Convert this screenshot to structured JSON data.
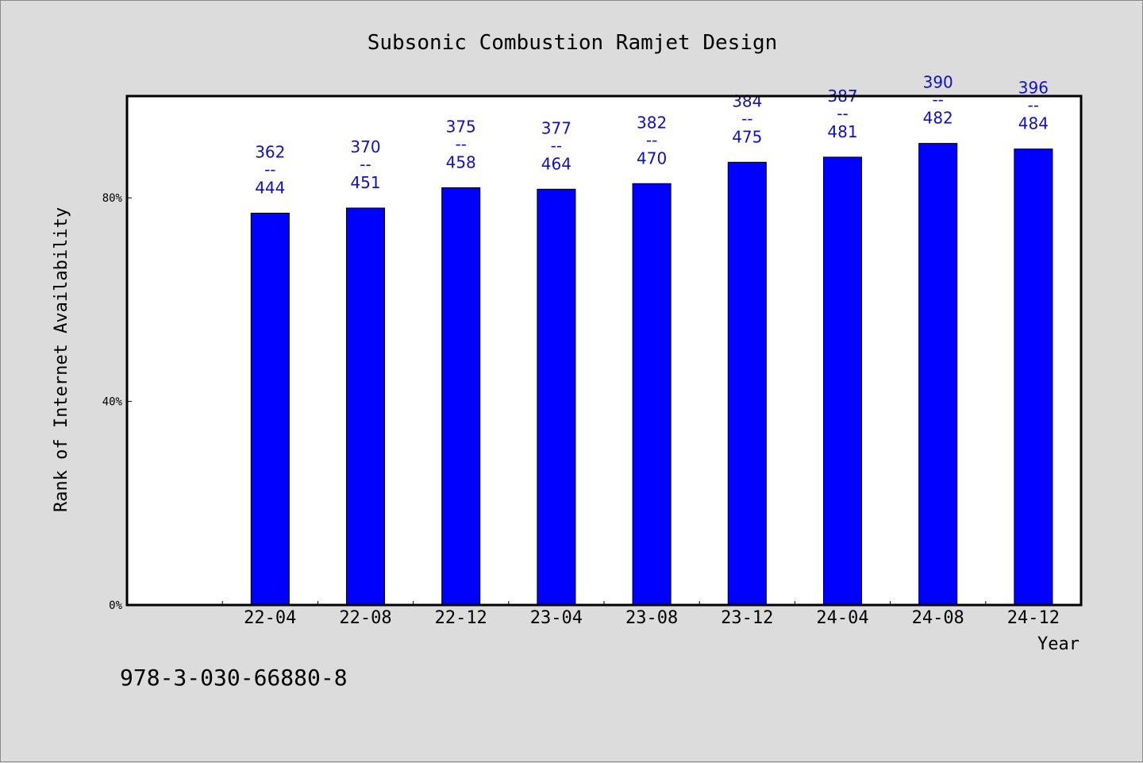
{
  "colors": {
    "background": "#dcdcdc",
    "plot_background": "#ffffff",
    "bar": "#0000ff",
    "label": "#1010c8",
    "axis": "#000000"
  },
  "footer": {
    "isbn": "978-3-030-66880-8"
  },
  "chart_data": {
    "type": "bar",
    "title": "Subsonic Combustion Ramjet Design",
    "xlabel": "Year",
    "ylabel": "Rank of Internet Availability",
    "ylim": [
      0,
      100
    ],
    "yticks": [
      {
        "value": 0,
        "label": "0%"
      },
      {
        "value": 40,
        "label": "40%"
      },
      {
        "value": 80,
        "label": "80%"
      }
    ],
    "grid": false,
    "leading_empty_slot": true,
    "categories": [
      "22-04",
      "22-08",
      "22-12",
      "23-04",
      "23-08",
      "23-12",
      "24-04",
      "24-08",
      "24-12"
    ],
    "values": [
      77,
      78,
      82,
      81.7,
      82.8,
      87,
      88,
      90.7,
      89.6
    ],
    "data_labels": [
      {
        "top": "362",
        "sep": "--",
        "bottom": "444"
      },
      {
        "top": "370",
        "sep": "--",
        "bottom": "451"
      },
      {
        "top": "375",
        "sep": "--",
        "bottom": "458"
      },
      {
        "top": "377",
        "sep": "--",
        "bottom": "464"
      },
      {
        "top": "382",
        "sep": "--",
        "bottom": "470"
      },
      {
        "top": "384",
        "sep": "--",
        "bottom": "475"
      },
      {
        "top": "387",
        "sep": "--",
        "bottom": "481"
      },
      {
        "top": "390",
        "sep": "--",
        "bottom": "482"
      },
      {
        "top": "396",
        "sep": "--",
        "bottom": "484"
      }
    ]
  }
}
